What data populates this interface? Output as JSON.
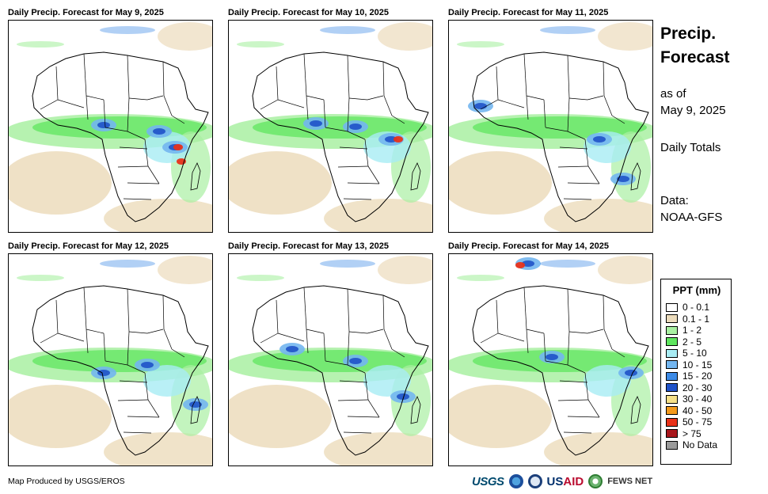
{
  "panels": [
    {
      "title": "Daily Precip. Forecast for May 9, 2025"
    },
    {
      "title": "Daily Precip. Forecast for May 10, 2025"
    },
    {
      "title": "Daily Precip. Forecast for May 11, 2025"
    },
    {
      "title": "Daily Precip. Forecast for May 12, 2025"
    },
    {
      "title": "Daily Precip. Forecast for May 13, 2025"
    },
    {
      "title": "Daily Precip. Forecast for May 14, 2025"
    }
  ],
  "side": {
    "title_line1": "Precip.",
    "title_line2": "Forecast",
    "asof_line1": "as of",
    "asof_line2": "May 9, 2025",
    "totals": "Daily Totals",
    "data_line1": "Data:",
    "data_line2": "NOAA-GFS"
  },
  "legend": {
    "title": "PPT (mm)",
    "items": [
      {
        "label": "0 - 0.1",
        "color": "#ffffff"
      },
      {
        "label": "0.1 - 1",
        "color": "#ecdcbc"
      },
      {
        "label": "1 - 2",
        "color": "#a9f0a2"
      },
      {
        "label": "2 - 5",
        "color": "#5fe65f"
      },
      {
        "label": "5 - 10",
        "color": "#a8ecf4"
      },
      {
        "label": "10 - 15",
        "color": "#73b6f0"
      },
      {
        "label": "15 - 20",
        "color": "#3c8ae6"
      },
      {
        "label": "20 - 30",
        "color": "#1f52c8"
      },
      {
        "label": "30 - 40",
        "color": "#f6e088"
      },
      {
        "label": "40 - 50",
        "color": "#f59a1c"
      },
      {
        "label": "50 - 75",
        "color": "#e8321a"
      },
      {
        "label": "> 75",
        "color": "#a8161c"
      },
      {
        "label": "No Data",
        "color": "#9a9a9a"
      }
    ]
  },
  "footer": {
    "credit": "Map Produced by USGS/EROS",
    "logo_usgs": "USGS",
    "logo_usaid_us": "US",
    "logo_usaid_aid": "AID",
    "logo_fews": "FEWS NET"
  }
}
